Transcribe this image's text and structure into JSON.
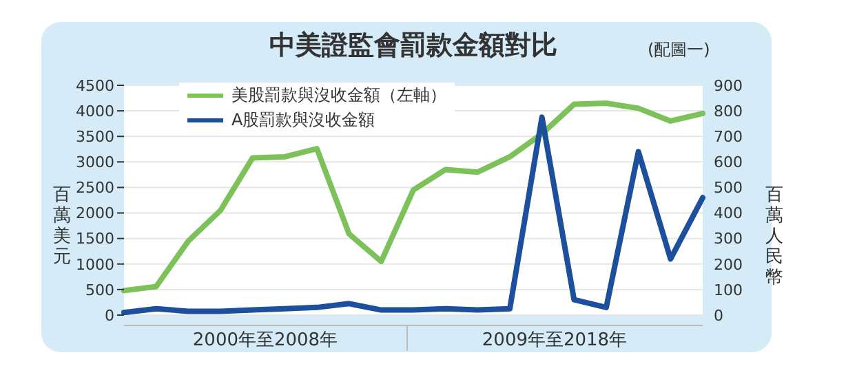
{
  "chart_data": {
    "type": "line",
    "title": "中美證監會罰款金額對比",
    "annotations": [
      "(配圖一)",
      "2000年至2008年",
      "2009年至2018年"
    ],
    "ylabel": "百萬美元",
    "y2label": "百萬人民幣",
    "categories": [
      null,
      null,
      null,
      null,
      null,
      null,
      null,
      null,
      null,
      null,
      null,
      null,
      null,
      null,
      null,
      null,
      null,
      null,
      null
    ],
    "series": [
      {
        "name": "美股罰款與沒收金額（左軸）",
        "color": "#7cc15a",
        "values": [
          480,
          560,
          1450,
          2050,
          3080,
          3100,
          3260,
          1590,
          1050,
          2450,
          2850,
          2800,
          3100,
          3550,
          4130,
          4150,
          4050,
          3800,
          3950
        ]
      },
      {
        "name": "A股罰款與沒收金額",
        "color": "#1c4f9c",
        "axis": "y2",
        "values": [
          10,
          25,
          15,
          15,
          20,
          25,
          30,
          45,
          20,
          20,
          25,
          20,
          25,
          775,
          60,
          30,
          640,
          220,
          460
        ]
      }
    ],
    "ylim": [
      0,
      4500
    ],
    "yticks": [
      0,
      500,
      1000,
      1500,
      2000,
      2500,
      3000,
      3500,
      4000,
      4500
    ],
    "y2lim": [
      0,
      900
    ],
    "y2ticks": [
      0,
      100,
      200,
      300,
      400,
      500,
      600,
      700,
      800,
      900
    ],
    "grid": "y",
    "legend": "top left",
    "marker": "none",
    "line_style": "solid"
  }
}
